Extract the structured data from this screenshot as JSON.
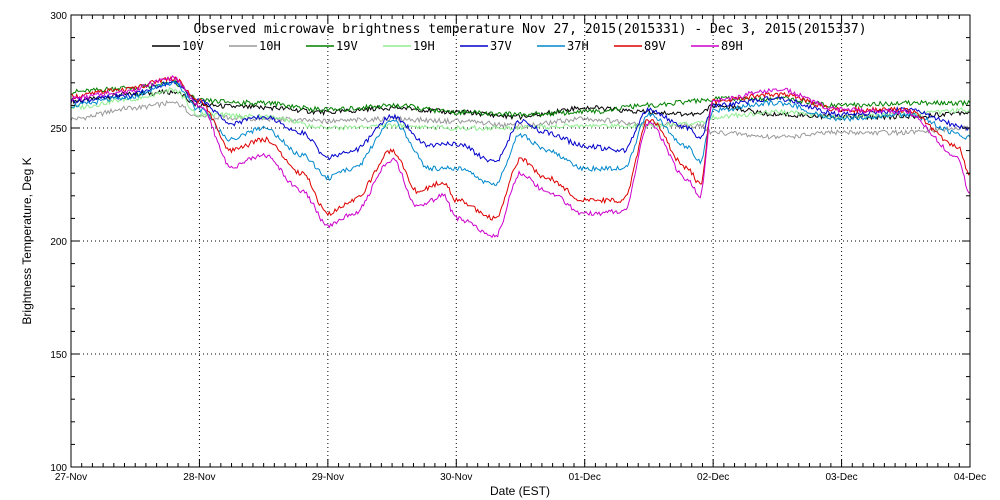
{
  "chart_data": {
    "type": "line",
    "title": "Observed microwave brightness temperature Nov 27, 2015(2015331) - Dec  3, 2015(2015337)",
    "xlabel": "Date (EST)",
    "ylabel": "Brightness Temperature, Deg K",
    "xlim": [
      0,
      7
    ],
    "ylim": [
      100,
      300
    ],
    "x_ticks": [
      0,
      1,
      2,
      3,
      4,
      5,
      6,
      7
    ],
    "x_tick_labels": [
      "27-Nov",
      "28-Nov",
      "29-Nov",
      "30-Nov",
      "01-Dec",
      "02-Dec",
      "03-Dec",
      "04-Dec"
    ],
    "y_ticks": [
      100,
      150,
      200,
      250,
      300
    ],
    "y_tick_labels": [
      "100",
      "150",
      "200",
      "250",
      "300"
    ],
    "grid": true,
    "legend_position": "top",
    "series": [
      {
        "name": "10V",
        "color": "#000000",
        "x": [
          0,
          0.5,
          0.8,
          1,
          1.5,
          2,
          2.5,
          3,
          3.5,
          4,
          4.5,
          4.9,
          5,
          5.5,
          6,
          6.5,
          7
        ],
        "y": [
          262,
          265,
          266,
          260,
          259,
          257,
          259,
          257,
          255,
          259,
          257,
          256,
          260,
          256,
          255,
          255,
          257
        ]
      },
      {
        "name": "10H",
        "color": "#9a9a9a",
        "x": [
          0,
          0.5,
          0.8,
          1,
          1.5,
          2,
          2.5,
          3,
          3.5,
          4,
          4.5,
          4.9,
          5,
          5.5,
          6,
          6.5,
          7
        ],
        "y": [
          254,
          259,
          261,
          255,
          254,
          253,
          254,
          253,
          251,
          254,
          252,
          251,
          248,
          246,
          248,
          248,
          250
        ]
      },
      {
        "name": "19V",
        "color": "#008000",
        "x": [
          0,
          0.5,
          0.8,
          1,
          1.5,
          2,
          2.5,
          3,
          3.5,
          4,
          4.5,
          4.9,
          5,
          5.5,
          6,
          6.5,
          7
        ],
        "y": [
          266,
          268,
          270,
          262,
          261,
          258,
          260,
          257,
          256,
          257,
          260,
          262,
          263,
          263,
          260,
          261,
          261
        ]
      },
      {
        "name": "19H",
        "color": "#90ee90",
        "x": [
          0,
          0.5,
          0.8,
          1,
          1.5,
          2,
          2.5,
          3,
          3.5,
          4,
          4.5,
          4.9,
          5,
          5.5,
          6,
          6.5,
          7
        ],
        "y": [
          259,
          263,
          267,
          256,
          255,
          250,
          251,
          250,
          250,
          251,
          251,
          252,
          255,
          257,
          255,
          256,
          258
        ]
      },
      {
        "name": "37V",
        "color": "#0000cc",
        "x": [
          0,
          0.4,
          0.8,
          1,
          1.25,
          1.5,
          1.8,
          2,
          2.2,
          2.5,
          2.8,
          3,
          3.3,
          3.5,
          3.7,
          4,
          4.3,
          4.5,
          4.8,
          4.9,
          5,
          5.5,
          6,
          6.5,
          7
        ],
        "y": [
          262,
          264,
          270,
          262,
          252,
          255,
          248,
          237,
          240,
          255,
          242,
          243,
          235,
          253,
          248,
          242,
          240,
          258,
          250,
          245,
          260,
          263,
          256,
          258,
          250
        ]
      },
      {
        "name": "37H",
        "color": "#0088cc",
        "x": [
          0,
          0.4,
          0.8,
          1,
          1.25,
          1.5,
          1.8,
          2,
          2.2,
          2.5,
          2.8,
          3,
          3.3,
          3.5,
          3.7,
          4,
          4.3,
          4.5,
          4.8,
          4.9,
          5,
          5.5,
          6,
          6.5,
          7
        ],
        "y": [
          260,
          263,
          270,
          258,
          245,
          250,
          238,
          228,
          232,
          253,
          232,
          232,
          225,
          247,
          240,
          232,
          232,
          256,
          242,
          235,
          258,
          261,
          254,
          256,
          246
        ]
      },
      {
        "name": "89V",
        "color": "#dd0000",
        "x": [
          0,
          0.4,
          0.8,
          1,
          1.25,
          1.5,
          1.8,
          2,
          2.2,
          2.5,
          2.7,
          2.9,
          3,
          3.3,
          3.5,
          3.7,
          4,
          4.3,
          4.5,
          4.8,
          4.9,
          5,
          5.5,
          6,
          6.5,
          6.9,
          7
        ],
        "y": [
          264,
          267,
          272,
          262,
          240,
          245,
          230,
          212,
          218,
          240,
          222,
          226,
          218,
          210,
          236,
          228,
          218,
          218,
          254,
          232,
          225,
          262,
          265,
          258,
          258,
          242,
          230
        ]
      },
      {
        "name": "89H",
        "color": "#cc00cc",
        "x": [
          0,
          0.4,
          0.8,
          1,
          1.25,
          1.5,
          1.8,
          2,
          2.2,
          2.5,
          2.7,
          2.9,
          3,
          3.3,
          3.5,
          3.7,
          4,
          4.3,
          4.5,
          4.8,
          4.9,
          5,
          5.5,
          6,
          6.5,
          6.9,
          7
        ],
        "y": [
          263,
          266,
          272,
          260,
          233,
          238,
          222,
          207,
          212,
          236,
          215,
          220,
          210,
          202,
          230,
          222,
          212,
          213,
          252,
          227,
          220,
          262,
          267,
          258,
          257,
          238,
          221
        ]
      }
    ]
  }
}
